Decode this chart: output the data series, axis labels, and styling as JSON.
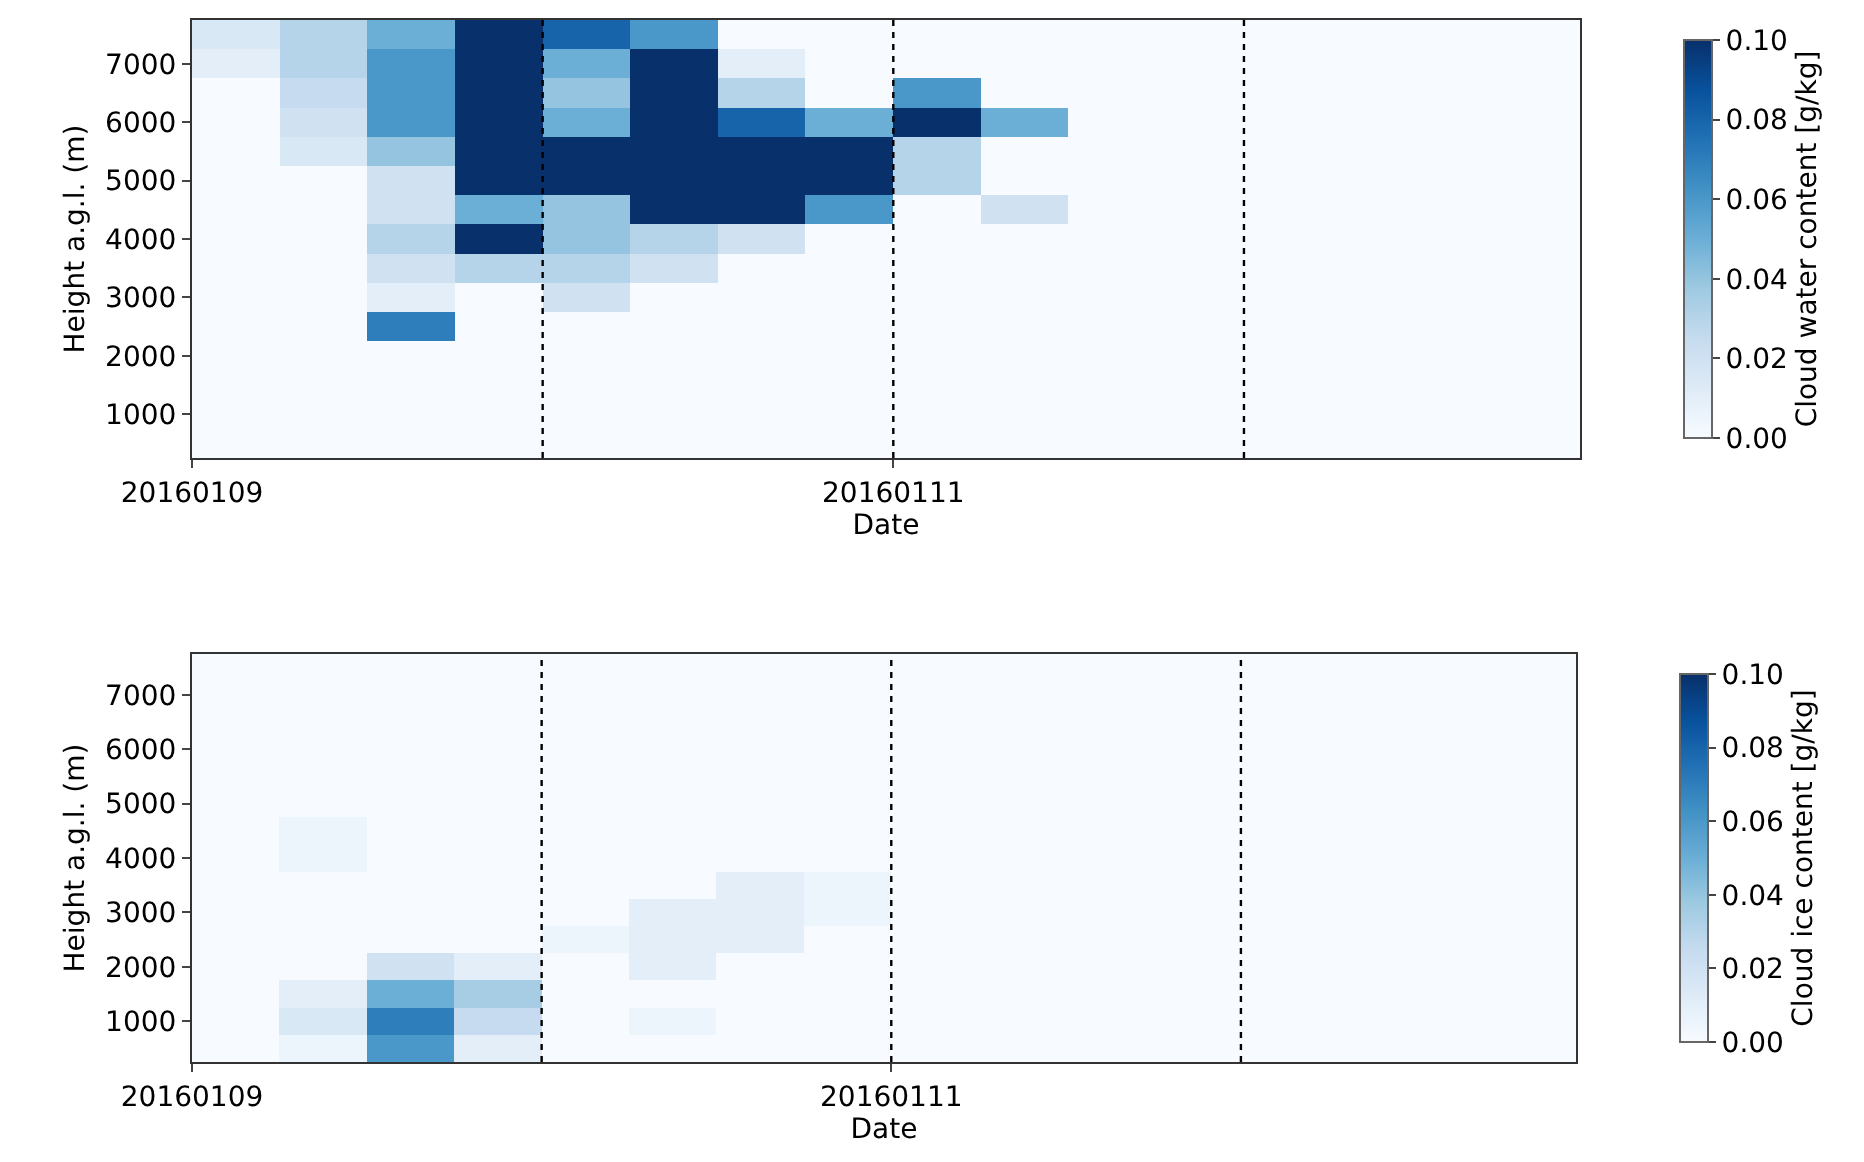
{
  "chart_data": [
    {
      "type": "heatmap",
      "xlabel": "Date",
      "ylabel": "Height a.g.l. (m)",
      "clabel": "Cloud water content [g/kg]",
      "x": [
        "2016-01-09T03:00",
        "2016-01-09T09:00",
        "2016-01-09T15:00",
        "2016-01-09T21:00",
        "2016-01-10T03:00",
        "2016-01-10T09:00",
        "2016-01-10T15:00",
        "2016-01-10T21:00",
        "2016-01-11T03:00",
        "2016-01-11T09:00",
        "2016-01-11T15:00",
        "2016-01-11T21:00",
        "2016-01-12T03:00",
        "2016-01-12T09:00",
        "2016-01-12T15:00",
        "2016-01-12T21:00"
      ],
      "y_categories": [
        null,
        "7000",
        null,
        "6000",
        null,
        "5000",
        null,
        "4000",
        null,
        "3000",
        null,
        "2000",
        null,
        "1000",
        null
      ],
      "cells": [
        [
          0.015,
          0.03,
          0.05,
          0.1,
          0.08,
          0.06,
          0,
          0,
          0,
          0,
          0,
          0,
          0,
          0,
          0,
          0
        ],
        [
          0.01,
          0.03,
          0.06,
          0.1,
          0.05,
          0.1,
          0.01,
          0,
          0,
          0,
          0,
          0,
          0,
          0,
          0,
          0
        ],
        [
          0,
          0.025,
          0.06,
          0.1,
          0.04,
          0.1,
          0.03,
          0,
          0.06,
          0,
          0,
          0,
          0,
          0,
          0,
          0
        ],
        [
          0,
          0.02,
          0.06,
          0.1,
          0.05,
          0.1,
          0.08,
          0.05,
          0.1,
          0.05,
          0,
          0,
          0,
          0,
          0,
          0
        ],
        [
          0,
          0.015,
          0.04,
          0.1,
          0.1,
          0.1,
          0.1,
          0.1,
          0.03,
          0,
          0,
          0,
          0,
          0,
          0,
          0
        ],
        [
          0,
          0,
          0.02,
          0.1,
          0.1,
          0.1,
          0.1,
          0.1,
          0.03,
          0,
          0,
          0,
          0,
          0,
          0,
          0
        ],
        [
          0,
          0,
          0.02,
          0.05,
          0.04,
          0.1,
          0.1,
          0.06,
          0,
          0.02,
          0,
          0,
          0,
          0,
          0,
          0
        ],
        [
          0,
          0,
          0.03,
          0.1,
          0.04,
          0.03,
          0.02,
          0,
          0,
          0,
          0,
          0,
          0,
          0,
          0,
          0
        ],
        [
          0,
          0,
          0.02,
          0.03,
          0.03,
          0.02,
          0,
          0,
          0,
          0,
          0,
          0,
          0,
          0,
          0,
          0
        ],
        [
          0,
          0,
          0.01,
          0,
          0.02,
          0,
          0,
          0,
          0,
          0,
          0,
          0,
          0,
          0,
          0,
          0
        ],
        [
          0,
          0,
          0.07,
          0,
          0,
          0,
          0,
          0,
          0,
          0,
          0,
          0,
          0,
          0,
          0,
          0
        ],
        [
          0,
          0,
          0,
          0,
          0,
          0,
          0,
          0,
          0,
          0,
          0,
          0,
          0,
          0,
          0,
          0
        ],
        [
          0,
          0,
          0,
          0,
          0,
          0,
          0,
          0,
          0,
          0,
          0,
          0,
          0,
          0,
          0,
          0
        ],
        [
          0,
          0,
          0,
          0,
          0,
          0,
          0,
          0,
          0,
          0,
          0,
          0,
          0,
          0,
          0,
          0
        ],
        [
          0,
          0,
          0,
          0,
          0,
          0,
          0,
          0,
          0,
          0,
          0,
          0,
          0,
          0,
          0,
          0
        ]
      ],
      "xlim": [
        "2016-01-09",
        "2016-01-12T23:00"
      ],
      "xticks": [
        {
          "value": "2016-01-09",
          "label": "20160109"
        },
        {
          "value": "2016-01-11",
          "label": "20160111"
        }
      ],
      "clim": [
        0,
        0.1
      ],
      "cticks": [
        {
          "value": 0,
          "label": "0.00"
        },
        {
          "value": 0.02,
          "label": "0.02"
        },
        {
          "value": 0.04,
          "label": "0.04"
        },
        {
          "value": 0.06,
          "label": "0.06"
        },
        {
          "value": 0.08,
          "label": "0.08"
        },
        {
          "value": 0.1,
          "label": "0.10"
        }
      ],
      "ref_lines": [
        {
          "axis": "x",
          "value": "2016-01-10",
          "line_style": "dotted",
          "color": "#000000"
        },
        {
          "axis": "x",
          "value": "2016-01-11",
          "line_style": "dotted",
          "color": "#000000"
        },
        {
          "axis": "x",
          "value": "2016-01-12",
          "line_style": "dotted",
          "color": "#000000"
        }
      ]
    },
    {
      "type": "heatmap",
      "xlabel": "Date",
      "ylabel": "Height a.g.l. (m)",
      "clabel": "Cloud ice content [g/kg]",
      "x": [
        "2016-01-09T03:00",
        "2016-01-09T09:00",
        "2016-01-09T15:00",
        "2016-01-09T21:00",
        "2016-01-10T03:00",
        "2016-01-10T09:00",
        "2016-01-10T15:00",
        "2016-01-10T21:00",
        "2016-01-11T03:00",
        "2016-01-11T09:00",
        "2016-01-11T15:00",
        "2016-01-11T21:00",
        "2016-01-12T03:00",
        "2016-01-12T09:00",
        "2016-01-12T15:00",
        "2016-01-12T21:00"
      ],
      "y_categories": [
        null,
        "7000",
        null,
        "6000",
        null,
        "5000",
        null,
        "4000",
        null,
        "3000",
        null,
        "2000",
        null,
        "1000",
        null
      ],
      "cells": [
        [
          0,
          0,
          0,
          0,
          0,
          0,
          0,
          0,
          0,
          0,
          0,
          0,
          0,
          0,
          0,
          0
        ],
        [
          0,
          0,
          0,
          0,
          0,
          0,
          0,
          0,
          0,
          0,
          0,
          0,
          0,
          0,
          0,
          0
        ],
        [
          0,
          0,
          0,
          0,
          0,
          0,
          0,
          0,
          0,
          0,
          0,
          0,
          0,
          0,
          0,
          0
        ],
        [
          0,
          0,
          0,
          0,
          0,
          0,
          0,
          0,
          0,
          0,
          0,
          0,
          0,
          0,
          0,
          0
        ],
        [
          0,
          0,
          0,
          0,
          0,
          0,
          0,
          0,
          0,
          0,
          0,
          0,
          0,
          0,
          0,
          0
        ],
        [
          0,
          0,
          0,
          0,
          0,
          0,
          0,
          0,
          0,
          0,
          0,
          0,
          0,
          0,
          0,
          0
        ],
        [
          0,
          0.005,
          0,
          0,
          0,
          0,
          0,
          0,
          0,
          0,
          0,
          0,
          0,
          0,
          0,
          0
        ],
        [
          0,
          0.005,
          0,
          0,
          0,
          0,
          0,
          0,
          0,
          0,
          0,
          0,
          0,
          0,
          0,
          0
        ],
        [
          0,
          0,
          0,
          0,
          0,
          0,
          0.01,
          0.005,
          0,
          0,
          0,
          0,
          0,
          0,
          0,
          0
        ],
        [
          0,
          0,
          0,
          0,
          0,
          0.01,
          0.01,
          0.005,
          0,
          0,
          0,
          0,
          0,
          0,
          0,
          0
        ],
        [
          0,
          0,
          0,
          0,
          0.005,
          0.01,
          0.01,
          0,
          0,
          0,
          0,
          0,
          0,
          0,
          0,
          0
        ],
        [
          0,
          0,
          0.02,
          0.01,
          0,
          0.01,
          0,
          0,
          0,
          0,
          0,
          0,
          0,
          0,
          0,
          0
        ],
        [
          0,
          0.01,
          0.05,
          0.035,
          0,
          0,
          0,
          0,
          0,
          0,
          0,
          0,
          0,
          0,
          0,
          0
        ],
        [
          0,
          0.015,
          0.07,
          0.025,
          0,
          0.005,
          0,
          0,
          0,
          0,
          0,
          0,
          0,
          0,
          0,
          0
        ],
        [
          0,
          0.005,
          0.06,
          0.01,
          0,
          0,
          0,
          0,
          0,
          0,
          0,
          0,
          0,
          0,
          0,
          0
        ]
      ],
      "xlim": [
        "2016-01-09",
        "2016-01-12T23:00"
      ],
      "xticks": [
        {
          "value": "2016-01-09",
          "label": "20160109"
        },
        {
          "value": "2016-01-11",
          "label": "20160111"
        }
      ],
      "clim": [
        0,
        0.1
      ],
      "cticks": [
        {
          "value": 0,
          "label": "0.00"
        },
        {
          "value": 0.02,
          "label": "0.02"
        },
        {
          "value": 0.04,
          "label": "0.04"
        },
        {
          "value": 0.06,
          "label": "0.06"
        },
        {
          "value": 0.08,
          "label": "0.08"
        },
        {
          "value": 0.1,
          "label": "0.10"
        }
      ],
      "ref_lines": [
        {
          "axis": "x",
          "value": "2016-01-10",
          "line_style": "dotted",
          "color": "#000000"
        },
        {
          "axis": "x",
          "value": "2016-01-11",
          "line_style": "dotted",
          "color": "#000000"
        },
        {
          "axis": "x",
          "value": "2016-01-12",
          "line_style": "dotted",
          "color": "#000000"
        }
      ]
    }
  ]
}
